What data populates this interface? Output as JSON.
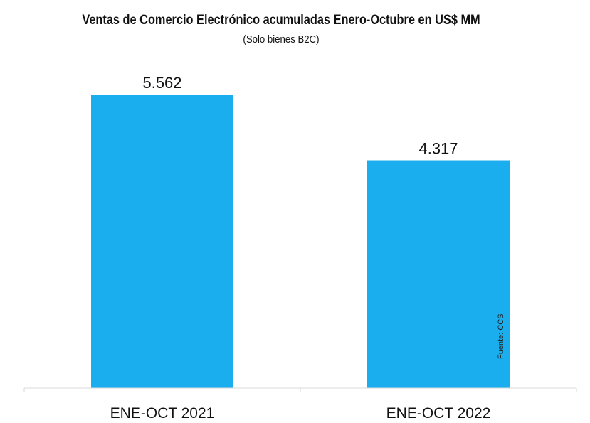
{
  "chart_data": {
    "type": "bar",
    "title": "Ventas de Comercio Electrónico acumuladas Enero-Octubre en US$ MM",
    "subtitle": "(Solo bienes B2C)",
    "categories": [
      "ENE-OCT 2021",
      "ENE-OCT 2022"
    ],
    "values": [
      5562,
      4317
    ],
    "value_labels": [
      "5.562",
      "4.317"
    ],
    "xlabel": "",
    "ylabel": "",
    "ylim": [
      0,
      5900
    ],
    "grid": false,
    "bar_color": "#1aaeee",
    "source": "Fuente: CCS"
  }
}
